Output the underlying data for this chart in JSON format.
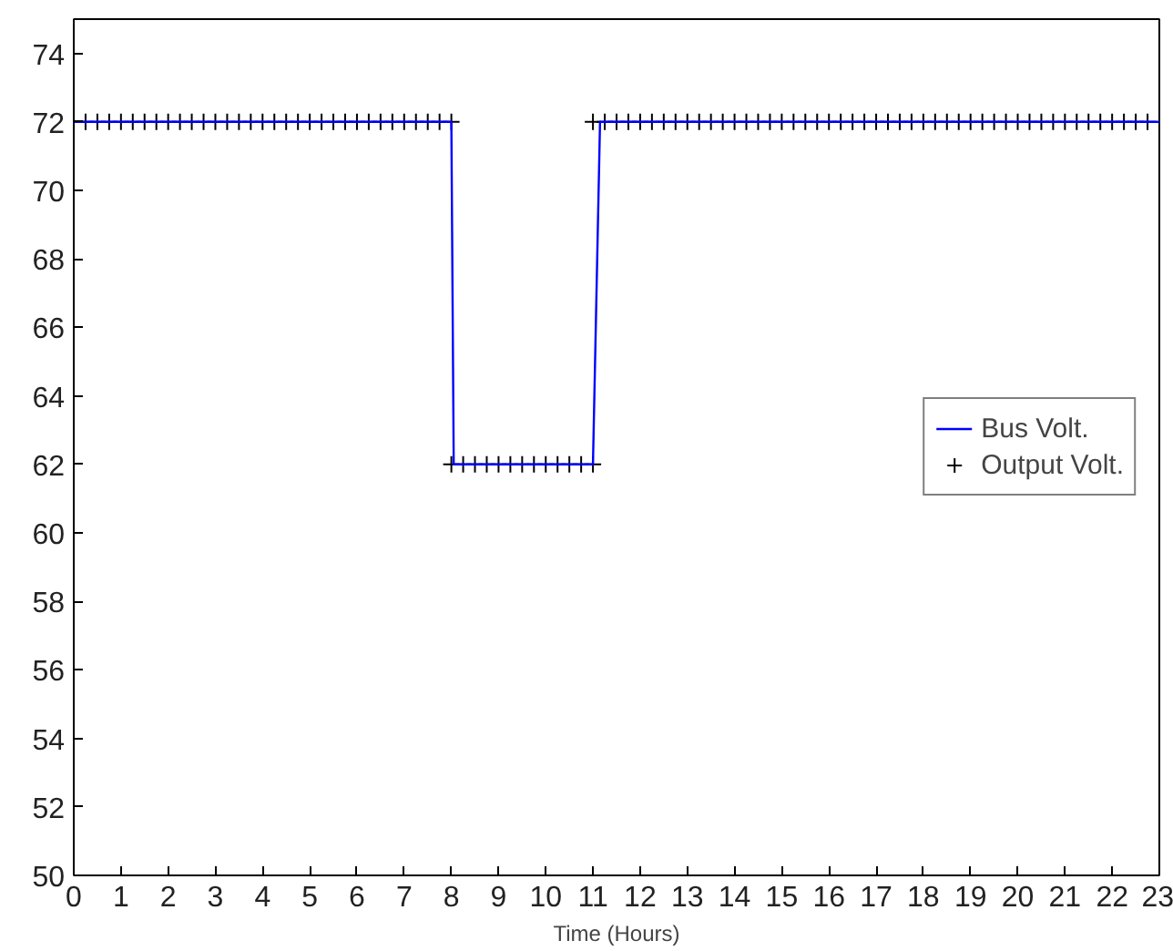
{
  "chart_data": {
    "type": "line",
    "xlabel": "Time (Hours)",
    "xlim": [
      0,
      23
    ],
    "ylim": [
      50,
      75
    ],
    "xticks": [
      0,
      1,
      2,
      3,
      4,
      5,
      6,
      7,
      8,
      9,
      10,
      11,
      12,
      13,
      14,
      15,
      16,
      17,
      18,
      19,
      20,
      21,
      22,
      23
    ],
    "yticks": [
      50,
      52,
      54,
      56,
      58,
      60,
      62,
      64,
      66,
      68,
      70,
      72,
      74
    ],
    "grid": false,
    "legend": "right",
    "series": [
      {
        "name": "Bus Volt.",
        "color": "#0000ff",
        "line_style": "solid",
        "marker": "none",
        "x": [
          0,
          8,
          8.05,
          11,
          11.15,
          23
        ],
        "values": [
          72,
          72,
          62,
          62,
          72,
          72
        ]
      },
      {
        "name": "Output Volt.",
        "color": "#000000",
        "type": "scatter",
        "marker": "cross",
        "x": [
          0.25,
          0.5,
          0.75,
          1,
          1.25,
          1.5,
          1.75,
          2,
          2.25,
          2.5,
          2.75,
          3,
          3.25,
          3.5,
          3.75,
          4,
          4.25,
          4.5,
          4.75,
          5,
          5.25,
          5.5,
          5.75,
          6,
          6.25,
          6.5,
          6.75,
          7,
          7.25,
          7.5,
          7.75,
          8,
          8,
          8.25,
          8.5,
          8.75,
          9,
          9.25,
          9.5,
          9.75,
          10,
          10.25,
          10.5,
          10.75,
          11,
          11,
          11.25,
          11.5,
          11.75,
          12,
          12.25,
          12.5,
          12.75,
          13,
          13.25,
          13.5,
          13.75,
          14,
          14.25,
          14.5,
          14.75,
          15,
          15.25,
          15.5,
          15.75,
          16,
          16.25,
          16.5,
          16.75,
          17,
          17.25,
          17.5,
          17.75,
          18,
          18.25,
          18.5,
          18.75,
          19,
          19.25,
          19.5,
          19.75,
          20,
          20.25,
          20.5,
          20.75,
          21,
          21.25,
          21.5,
          21.75,
          22,
          22.25,
          22.5,
          22.75
        ],
        "values": [
          72,
          72,
          72,
          72,
          72,
          72,
          72,
          72,
          72,
          72,
          72,
          72,
          72,
          72,
          72,
          72,
          72,
          72,
          72,
          72,
          72,
          72,
          72,
          72,
          72,
          72,
          72,
          72,
          72,
          72,
          72,
          72,
          62,
          62,
          62,
          62,
          62,
          62,
          62,
          62,
          62,
          62,
          62,
          62,
          62,
          72,
          72,
          72,
          72,
          72,
          72,
          72,
          72,
          72,
          72,
          72,
          72,
          72,
          72,
          72,
          72,
          72,
          72,
          72,
          72,
          72,
          72,
          72,
          72,
          72,
          72,
          72,
          72,
          72,
          72,
          72,
          72,
          72,
          72,
          72,
          72,
          72,
          72,
          72,
          72,
          72,
          72,
          72,
          72,
          72,
          72,
          72,
          72
        ]
      }
    ]
  }
}
